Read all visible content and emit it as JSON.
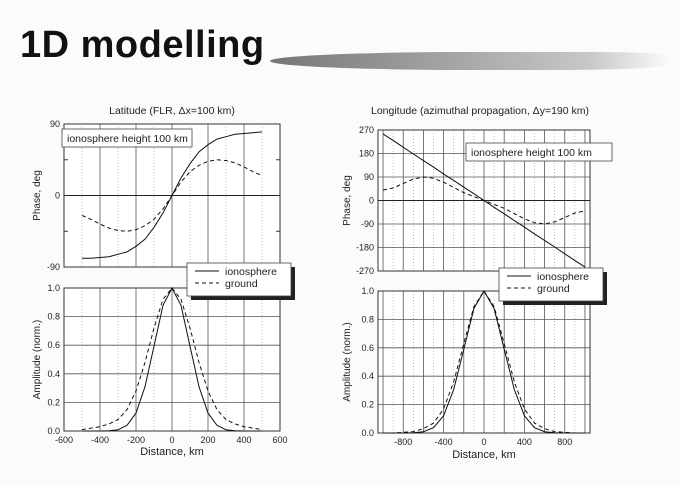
{
  "slide": {
    "title": "1D modelling"
  },
  "chart_data": [
    {
      "type": "line",
      "title": "Latitude (FLR, Δx=100 km)",
      "xlabel": "",
      "ylabel": "Phase, deg",
      "xlim": [
        -600,
        600
      ],
      "ylim": [
        -90,
        90
      ],
      "yticks": [
        "90",
        "0",
        "-90"
      ],
      "ytick_values": [
        90,
        0,
        -90
      ],
      "annotation": "ionosphere height 100 km",
      "x": [
        -500,
        -450,
        -400,
        -350,
        -300,
        -250,
        -200,
        -150,
        -100,
        -50,
        0,
        50,
        100,
        150,
        200,
        250,
        300,
        350,
        400,
        450,
        500
      ],
      "series": [
        {
          "name": "ionosphere",
          "style": "solid",
          "values": [
            -79,
            -79,
            -78,
            -77,
            -74,
            -71,
            -64,
            -55,
            -40,
            -22,
            0,
            22,
            40,
            55,
            64,
            71,
            74,
            77,
            78,
            79,
            80
          ]
        },
        {
          "name": "ground",
          "style": "dashed",
          "values": [
            -25,
            -30,
            -36,
            -41,
            -44,
            -45,
            -43,
            -38,
            -30,
            -17,
            0,
            17,
            30,
            38,
            43,
            45,
            44,
            41,
            36,
            30,
            25
          ]
        }
      ]
    },
    {
      "type": "line",
      "xlabel": "Distance, km",
      "ylabel": "Amplitude (norm.)",
      "xlim": [
        -600,
        600
      ],
      "ylim": [
        0,
        1
      ],
      "xticks": [
        "-600",
        "-400",
        "-200",
        "0",
        "200",
        "400",
        "600"
      ],
      "xtick_values": [
        -600,
        -400,
        -200,
        0,
        200,
        400,
        600
      ],
      "yticks": [
        "1.0",
        "0.8",
        "0.6",
        "0.4",
        "0.2",
        "0.0"
      ],
      "ytick_values": [
        1,
        0.8,
        0.6,
        0.4,
        0.2,
        0
      ],
      "legend": {
        "position": "top-right",
        "entries": [
          "ionosphere",
          "ground"
        ]
      },
      "x": [
        -500,
        -450,
        -400,
        -350,
        -300,
        -250,
        -200,
        -150,
        -100,
        -50,
        0,
        50,
        100,
        150,
        200,
        250,
        300,
        350,
        400,
        450,
        500
      ],
      "series": [
        {
          "name": "ionosphere",
          "style": "solid",
          "values": [
            0,
            0,
            0,
            0.002,
            0.009,
            0.039,
            0.125,
            0.31,
            0.594,
            0.878,
            1,
            0.878,
            0.594,
            0.31,
            0.125,
            0.039,
            0.009,
            0.002,
            0,
            0,
            0
          ]
        },
        {
          "name": "ground",
          "style": "dashed",
          "values": [
            0.01,
            0.02,
            0.03,
            0.05,
            0.08,
            0.15,
            0.28,
            0.48,
            0.72,
            0.92,
            1,
            0.92,
            0.72,
            0.48,
            0.28,
            0.15,
            0.08,
            0.05,
            0.03,
            0.02,
            0.01
          ]
        }
      ]
    },
    {
      "type": "line",
      "title": "Longitude (azimuthal propagation, Δy=190 km)",
      "xlabel": "",
      "ylabel": "Phase, deg",
      "xlim": [
        -1050,
        1050
      ],
      "ylim": [
        -270,
        270
      ],
      "yticks": [
        "270",
        "180",
        "90",
        "0",
        "-90",
        "-180",
        "-270"
      ],
      "ytick_values": [
        270,
        180,
        90,
        0,
        -90,
        -180,
        -270
      ],
      "annotation": "ionosphere height 100 km",
      "x": [
        -1000,
        -900,
        -800,
        -700,
        -600,
        -500,
        -400,
        -300,
        -200,
        -100,
        0,
        100,
        200,
        300,
        400,
        500,
        600,
        700,
        800,
        900,
        1000
      ],
      "series": [
        {
          "name": "ionosphere",
          "style": "solid",
          "values": [
            255,
            230,
            204,
            178,
            153,
            128,
            102,
            77,
            51,
            26,
            0,
            -26,
            -51,
            -77,
            -102,
            -128,
            -153,
            -178,
            -204,
            -230,
            -255
          ]
        },
        {
          "name": "ground",
          "style": "dashed",
          "values": [
            40,
            48,
            65,
            82,
            90,
            85,
            70,
            50,
            30,
            15,
            0,
            -15,
            -30,
            -50,
            -70,
            -85,
            -90,
            -82,
            -65,
            -48,
            -40
          ]
        }
      ]
    },
    {
      "type": "line",
      "xlabel": "Distance, km",
      "ylabel": "Amplitude (norm.)",
      "xlim": [
        -1050,
        1050
      ],
      "ylim": [
        0,
        1
      ],
      "xticks": [
        "-800",
        "-400",
        "0",
        "400",
        "800"
      ],
      "xtick_values": [
        -800,
        -400,
        0,
        400,
        800
      ],
      "yticks": [
        "1.0",
        "0.8",
        "0.6",
        "0.4",
        "0.2",
        "0.0"
      ],
      "ytick_values": [
        1,
        0.8,
        0.6,
        0.4,
        0.2,
        0
      ],
      "legend": {
        "position": "top-right",
        "entries": [
          "ionosphere",
          "ground"
        ]
      },
      "x": [
        -1000,
        -900,
        -800,
        -700,
        -600,
        -500,
        -400,
        -300,
        -200,
        -100,
        0,
        100,
        200,
        300,
        400,
        500,
        600,
        700,
        800,
        900,
        1000
      ],
      "series": [
        {
          "name": "ionosphere",
          "style": "solid",
          "values": [
            0,
            0,
            0,
            0.002,
            0.009,
            0.037,
            0.122,
            0.306,
            0.59,
            0.877,
            1,
            0.877,
            0.59,
            0.306,
            0.122,
            0.037,
            0.009,
            0.002,
            0,
            0,
            0
          ]
        },
        {
          "name": "ground",
          "style": "dashed",
          "values": [
            0,
            0,
            0.005,
            0.01,
            0.03,
            0.07,
            0.17,
            0.36,
            0.63,
            0.89,
            1,
            0.89,
            0.63,
            0.36,
            0.17,
            0.07,
            0.03,
            0.01,
            0.005,
            0,
            0
          ]
        }
      ]
    }
  ]
}
